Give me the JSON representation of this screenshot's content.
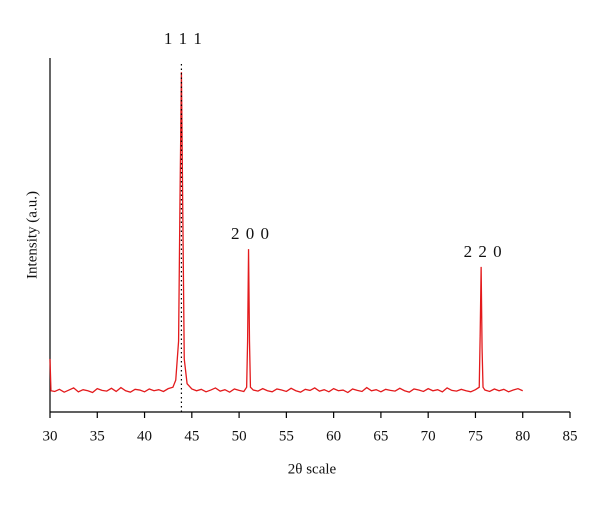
{
  "chart_data": {
    "type": "line",
    "x_label": "2θ scale",
    "y_label": "Intensity (a.u.)",
    "x": [
      30,
      30.1,
      30.5,
      31,
      31.5,
      32,
      32.5,
      33,
      33.5,
      34,
      34.5,
      35,
      35.5,
      36,
      36.5,
      37,
      37.5,
      38,
      38.5,
      39,
      39.5,
      40,
      40.5,
      41,
      41.5,
      42,
      42.5,
      43,
      43.3,
      43.6,
      43.75,
      43.9,
      44.05,
      44.2,
      44.5,
      45,
      45.5,
      46,
      46.5,
      47,
      47.5,
      48,
      48.5,
      49,
      49.5,
      50,
      50.5,
      50.8,
      50.9,
      51,
      51.1,
      51.2,
      51.5,
      52,
      52.5,
      53,
      53.5,
      54,
      54.5,
      55,
      55.5,
      56,
      56.5,
      57,
      57.5,
      58,
      58.5,
      59,
      59.5,
      60,
      60.5,
      61,
      61.5,
      62,
      62.5,
      63,
      63.5,
      64,
      64.5,
      65,
      65.5,
      66,
      66.5,
      67,
      67.5,
      68,
      68.5,
      69,
      69.5,
      70,
      70.5,
      71,
      71.5,
      72,
      72.5,
      73,
      73.5,
      74,
      74.5,
      75,
      75.4,
      75.5,
      75.6,
      75.7,
      75.8,
      76,
      76.5,
      77,
      77.5,
      78,
      78.5,
      79,
      79.5,
      80
    ],
    "series": [
      {
        "color": "#e31a1c",
        "values": [
          15,
          6,
          5.8,
          6.4,
          5.6,
          6.2,
          6.8,
          5.7,
          6.3,
          6.0,
          5.5,
          6.6,
          6.1,
          5.9,
          6.7,
          5.8,
          6.9,
          6.0,
          5.6,
          6.4,
          6.2,
          5.7,
          6.5,
          6.0,
          6.3,
          5.8,
          6.6,
          7,
          9,
          20,
          60,
          96,
          55,
          15,
          8,
          6.5,
          6.0,
          6.4,
          5.7,
          6.2,
          6.8,
          5.9,
          6.3,
          5.6,
          6.5,
          6.1,
          5.8,
          7,
          20,
          46,
          20,
          7,
          6.2,
          5.9,
          6.6,
          6.0,
          5.7,
          6.5,
          6.2,
          5.8,
          6.7,
          6.0,
          5.6,
          6.4,
          6.1,
          6.8,
          5.9,
          6.3,
          5.7,
          6.6,
          6.0,
          6.2,
          5.5,
          6.5,
          6.1,
          5.8,
          6.9,
          6.0,
          6.3,
          5.7,
          6.4,
          6.1,
          5.9,
          6.7,
          6.0,
          5.6,
          6.5,
          6.2,
          5.8,
          6.6,
          6.0,
          6.3,
          5.7,
          6.8,
          6.1,
          5.9,
          6.4,
          6.0,
          5.7,
          6.3,
          7,
          22,
          41,
          18,
          7,
          6.2,
          5.8,
          6.5,
          6.0,
          6.4,
          5.7,
          6.2,
          6.6,
          6.0
        ]
      }
    ],
    "xlim": [
      30,
      85
    ],
    "xticks": [
      30,
      35,
      40,
      45,
      50,
      55,
      60,
      65,
      70,
      75,
      80,
      85
    ],
    "ylim": [
      0,
      100
    ],
    "reference_line_x": 43.9,
    "annotations": [
      {
        "text": "1 1 1",
        "x": 43.9
      },
      {
        "text": "2 0 0",
        "x": 51
      },
      {
        "text": "2 2 0",
        "x": 75.6
      }
    ]
  }
}
